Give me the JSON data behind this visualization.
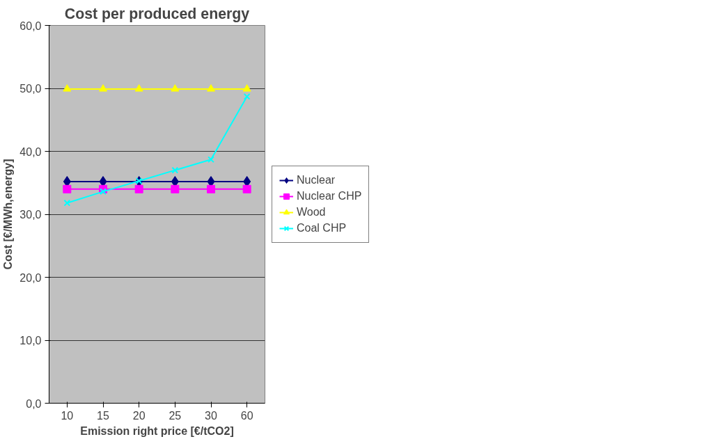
{
  "chart_data": {
    "type": "line",
    "title": "Cost per produced energy",
    "xlabel": "Emission right price [€/tCO2]",
    "ylabel": "Cost [€/MWh,energy]",
    "categories": [
      "10",
      "15",
      "20",
      "25",
      "30",
      "60"
    ],
    "ylim": [
      0,
      60
    ],
    "yticks": [
      {
        "value": 0,
        "label": "0,0"
      },
      {
        "value": 10,
        "label": "10,0"
      },
      {
        "value": 20,
        "label": "20,0"
      },
      {
        "value": 30,
        "label": "30,0"
      },
      {
        "value": 40,
        "label": "40,0"
      },
      {
        "value": 50,
        "label": "50,0"
      },
      {
        "value": 60,
        "label": "60,0"
      }
    ],
    "grid": "y",
    "legend": "right",
    "series": [
      {
        "name": "Nuclear",
        "color": "#000080",
        "marker": "diamond",
        "values": [
          35.2,
          35.2,
          35.2,
          35.2,
          35.2,
          35.2
        ]
      },
      {
        "name": "Nuclear CHP",
        "color": "#ff00ff",
        "marker": "square",
        "values": [
          34.0,
          34.0,
          34.0,
          34.0,
          34.0,
          34.0
        ]
      },
      {
        "name": "Wood",
        "color": "#ffff00",
        "marker": "triangle",
        "values": [
          49.9,
          49.9,
          49.9,
          49.9,
          49.9,
          49.9
        ]
      },
      {
        "name": "Coal CHP",
        "color": "#00ffff",
        "marker": "cross",
        "values": [
          31.8,
          33.6,
          35.3,
          37.0,
          38.7,
          48.7
        ]
      }
    ]
  }
}
